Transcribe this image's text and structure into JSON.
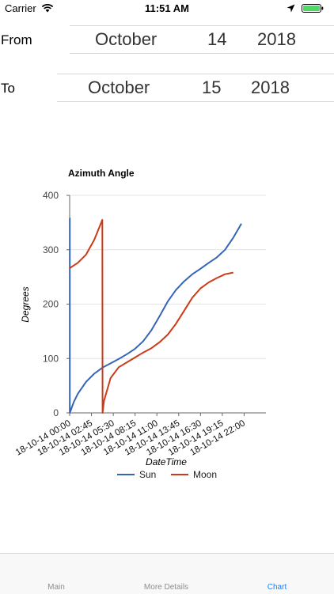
{
  "status_bar": {
    "carrier": "Carrier",
    "time": "11:51 AM"
  },
  "range": {
    "from": {
      "label": "From",
      "month": "October",
      "day": "14",
      "year": "2018"
    },
    "to": {
      "label": "To",
      "month": "October",
      "day": "15",
      "year": "2018"
    }
  },
  "chart_data": {
    "type": "line",
    "title": "Azimuth Angle",
    "xlabel": "DateTime",
    "ylabel": "Degrees",
    "ylim": [
      0,
      400
    ],
    "yticks": [
      0,
      100,
      200,
      300,
      400
    ],
    "categories": [
      "18-10-14 00:00",
      "18-10-14 02:45",
      "18-10-14 05:30",
      "18-10-14 08:15",
      "18-10-14 11:00",
      "18-10-14 13:45",
      "18-10-14 16:30",
      "18-10-14 19:15",
      "18-10-14 22:00"
    ],
    "legend_position": "bottom",
    "series": [
      {
        "name": "Sun",
        "color": "#3465b6",
        "x": [
          0,
          0.02,
          0.02,
          0.5,
          1,
          2,
          3,
          4,
          5,
          6,
          7,
          8,
          9,
          10,
          11,
          12,
          13,
          14,
          15,
          16,
          17,
          18,
          19,
          20,
          21,
          22,
          23,
          24
        ],
        "y": [
          358,
          358,
          0,
          20,
          35,
          57,
          72,
          83,
          91,
          99,
          108,
          118,
          132,
          152,
          178,
          205,
          226,
          242,
          255,
          265,
          276,
          286,
          300,
          322,
          348,
          null,
          null,
          null
        ]
      },
      {
        "name": "Moon",
        "color": "#cc3a17",
        "x": [
          0,
          1,
          2,
          3,
          4,
          4.03,
          4.2,
          5,
          6,
          7,
          8,
          9,
          10,
          11,
          12,
          13,
          14,
          15,
          16,
          17,
          18,
          19,
          20,
          21,
          22,
          23,
          24
        ],
        "y": [
          266,
          276,
          291,
          318,
          355,
          0,
          22,
          64,
          84,
          93,
          102,
          111,
          119,
          130,
          144,
          164,
          188,
          212,
          229,
          240,
          248,
          255,
          258,
          null,
          null,
          null,
          null
        ]
      }
    ]
  },
  "tabs": [
    {
      "label": "Main"
    },
    {
      "label": "More Details"
    },
    {
      "label": "Chart"
    }
  ],
  "colors": {
    "accent": "#1a82fb",
    "battery": "#4cd964"
  },
  "icons": [
    "wifi-icon",
    "location-arrow-icon",
    "battery-icon"
  ]
}
